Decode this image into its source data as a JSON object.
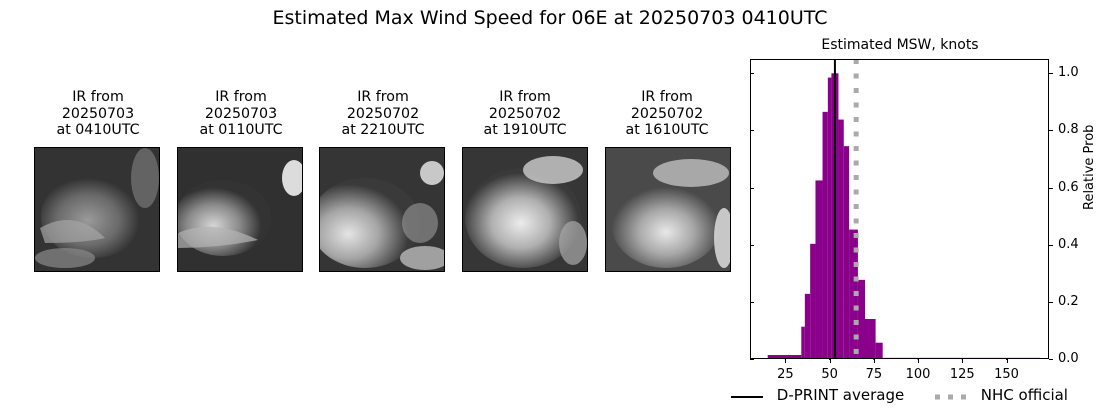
{
  "title": "Estimated Max Wind Speed for 06E at 20250703 0410UTC",
  "ir_panels": [
    {
      "label": "IR from\n20250703\nat 0410UTC",
      "date": "20250703",
      "time": "0410UTC"
    },
    {
      "label": "IR from\n20250703\nat 0110UTC",
      "date": "20250703",
      "time": "0110UTC"
    },
    {
      "label": "IR from\n20250702\nat 2210UTC",
      "date": "20250702",
      "time": "2210UTC"
    },
    {
      "label": "IR from\n20250702\nat 1910UTC",
      "date": "20250702",
      "time": "1910UTC"
    },
    {
      "label": "IR from\n20250702\nat 1610UTC",
      "date": "20250702",
      "time": "1610UTC"
    }
  ],
  "histogram": {
    "title": "Estimated MSW, knots",
    "ylabel": "Relative Prob",
    "xticks": [
      "25",
      "50",
      "75",
      "100",
      "125",
      "150"
    ],
    "yticks": [
      "0.0",
      "0.2",
      "0.4",
      "0.6",
      "0.8",
      "1.0"
    ],
    "legend": {
      "dprint_label": "D-PRINT average",
      "nhc_label": "NHC official"
    }
  },
  "colors": {
    "bar": "#8b008b",
    "dprint_line": "#000000",
    "nhc_line": "#aaaaaa"
  },
  "chart_data": {
    "type": "bar",
    "title": "Estimated MSW, knots",
    "suptitle": "Estimated Max Wind Speed for 06E at 20250703 0410UTC",
    "xlabel": "",
    "ylabel": "Relative Prob",
    "xlim": [
      5,
      174
    ],
    "ylim": [
      0,
      1.05
    ],
    "xticks": [
      25,
      50,
      75,
      100,
      125,
      150
    ],
    "yticks": [
      0.0,
      0.2,
      0.4,
      0.6,
      0.8,
      1.0
    ],
    "y_axis_position": "right",
    "bins": [
      {
        "x0": 15,
        "x1": 34,
        "value": 0.014
      },
      {
        "x0": 34,
        "x1": 36,
        "value": 0.113
      },
      {
        "x0": 36,
        "x1": 39,
        "value": 0.228
      },
      {
        "x0": 39,
        "x1": 42,
        "value": 0.403
      },
      {
        "x0": 42,
        "x1": 46,
        "value": 0.625
      },
      {
        "x0": 46,
        "x1": 49,
        "value": 0.865
      },
      {
        "x0": 49,
        "x1": 51,
        "value": 0.985
      },
      {
        "x0": 51,
        "x1": 55,
        "value": 1.0
      },
      {
        "x0": 55,
        "x1": 58,
        "value": 0.838
      },
      {
        "x0": 58,
        "x1": 61,
        "value": 0.745
      },
      {
        "x0": 61,
        "x1": 66,
        "value": 0.453
      },
      {
        "x0": 66,
        "x1": 70,
        "value": 0.277
      },
      {
        "x0": 70,
        "x1": 76,
        "value": 0.14
      },
      {
        "x0": 76,
        "x1": 80,
        "value": 0.057
      },
      {
        "x0": 80,
        "x1": 169,
        "value": 0.004
      }
    ],
    "vlines": [
      {
        "name": "D-PRINT average",
        "x": 53,
        "style": "solid",
        "color": "#000000"
      },
      {
        "name": "NHC official",
        "x": 65,
        "style": "dotted",
        "color": "#aaaaaa"
      }
    ],
    "legend": [
      "D-PRINT average",
      "NHC official"
    ],
    "legend_position": "bottom"
  }
}
